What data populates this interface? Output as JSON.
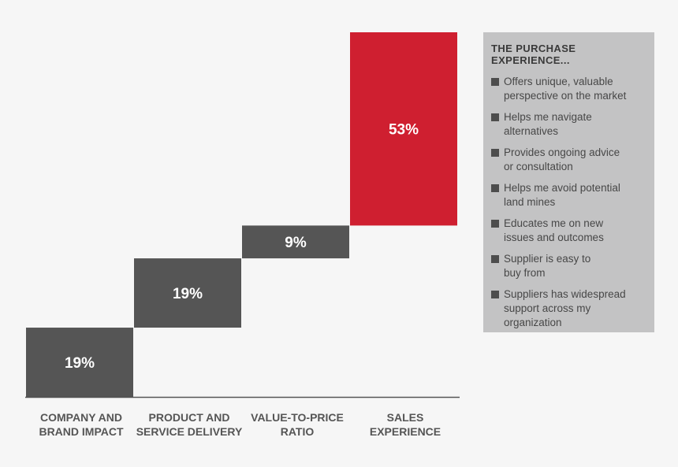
{
  "colors": {
    "bar": "#555555",
    "highlight": "#cf1f30",
    "value_text": "#ffffff",
    "axis": "#555555"
  },
  "chart_data": {
    "type": "bar",
    "variant": "waterfall",
    "categories": [
      "COMPANY AND\nBRAND IMPACT",
      "PRODUCT AND\nSERVICE DELIVERY",
      "VALUE-TO-PRICE\nRATIO",
      "SALES\nEXPERIENCE"
    ],
    "values": [
      19,
      19,
      9,
      53
    ],
    "value_labels": [
      "19%",
      "19%",
      "9%",
      "53%"
    ],
    "highlight_index": 3,
    "ylim": [
      0,
      100
    ],
    "grid": false,
    "legend": {
      "title": "THE PURCHASE EXPERIENCE...",
      "items": [
        "Offers unique, valuable\nperspective on the market",
        "Helps me navigate\nalternatives",
        "Provides ongoing advice\nor consultation",
        "Helps me avoid potential\nland mines",
        "Educates me on new\nissues and outcomes",
        "Supplier is easy to\nbuy from",
        "Suppliers has widespread\nsupport across my\norganization"
      ]
    }
  }
}
